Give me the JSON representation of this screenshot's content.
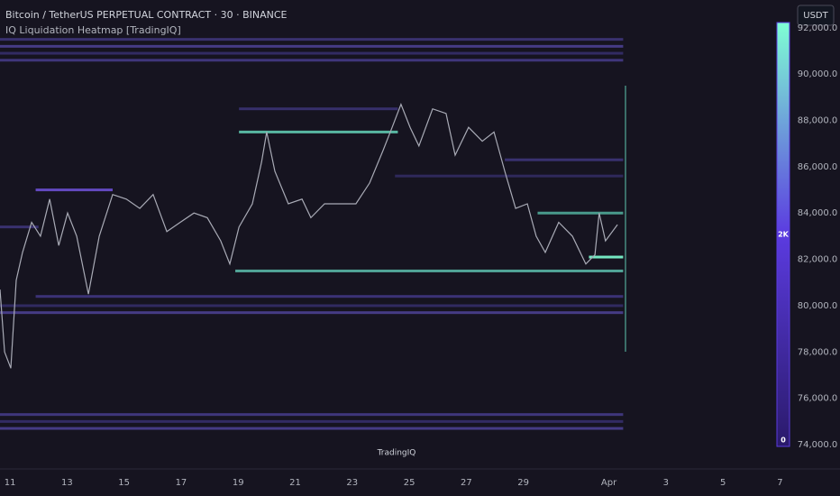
{
  "chart_data": {
    "type": "line",
    "title": "Bitcoin / TetherUS PERPETUAL CONTRACT · 30 · BINANCE",
    "subtitle": "IQ Liquidation Heatmap [TradingIQ]",
    "watermark": "TradingIQ",
    "currency_button": "USDT",
    "xlim": [
      10.65,
      38.46
    ],
    "ylim": [
      72950,
      93200
    ],
    "xticks": [
      11,
      13,
      15,
      17,
      19,
      21,
      23,
      25,
      27,
      29,
      {
        "value": 32,
        "label": "Apr"
      },
      {
        "value": 34,
        "label": "3"
      },
      {
        "value": 36,
        "label": "5"
      },
      {
        "value": 38,
        "label": "7"
      }
    ],
    "yticks": [
      {
        "value": 74000,
        "label": "74,000.0"
      },
      {
        "value": 76000,
        "label": "76,000.0"
      },
      {
        "value": 78000,
        "label": "78,000.0"
      },
      {
        "value": 80000,
        "label": "80,000.0"
      },
      {
        "value": 82000,
        "label": "82,000.0"
      },
      {
        "value": 84000,
        "label": "84,000.0"
      },
      {
        "value": 86000,
        "label": "86,000.0"
      },
      {
        "value": 88000,
        "label": "88,000.0"
      },
      {
        "value": 90000,
        "label": "90,000.0"
      },
      {
        "value": 92000,
        "label": "92,000.0"
      }
    ],
    "series": [
      {
        "name": "BTCUSDT.P",
        "color": "#a9abb6",
        "x": [
          10.65,
          10.81,
          11.03,
          11.22,
          11.44,
          11.76,
          12.07,
          12.39,
          12.71,
          13.02,
          13.34,
          13.75,
          14.13,
          14.6,
          15.08,
          15.55,
          16.02,
          16.5,
          16.97,
          17.45,
          17.92,
          18.39,
          18.71,
          19.03,
          19.5,
          19.82,
          20.0,
          20.29,
          20.76,
          21.24,
          21.55,
          22.03,
          22.66,
          23.13,
          23.61,
          24.08,
          24.4,
          24.71,
          25.03,
          25.34,
          25.82,
          26.29,
          26.61,
          27.08,
          27.56,
          27.97,
          28.35,
          28.73,
          29.14,
          29.45,
          29.77,
          30.24,
          30.72,
          31.19,
          31.51,
          31.66,
          31.88,
          32.3
        ],
        "values": [
          80700,
          78000,
          77300,
          81100,
          82300,
          83600,
          83000,
          84600,
          82600,
          84000,
          83000,
          80500,
          83000,
          84800,
          84600,
          84200,
          84800,
          83200,
          83600,
          84000,
          83800,
          82800,
          81800,
          83400,
          84400,
          86200,
          87500,
          85800,
          84400,
          84600,
          83800,
          84400,
          84400,
          84400,
          85300,
          86700,
          87700,
          88700,
          87700,
          86900,
          88500,
          88300,
          86500,
          87700,
          87100,
          87500,
          85800,
          84200,
          84400,
          83000,
          82300,
          83600,
          83000,
          81800,
          82200,
          84000,
          82800,
          83500
        ]
      }
    ],
    "levels": [
      {
        "price": 91500,
        "start": 10.65,
        "end": 32.5,
        "color": "#3d3478"
      },
      {
        "price": 91200,
        "start": 10.65,
        "end": 32.5,
        "color": "#4a3f90"
      },
      {
        "price": 90900,
        "start": 10.65,
        "end": 32.5,
        "color": "#352d6a"
      },
      {
        "price": 90600,
        "start": 10.65,
        "end": 32.5,
        "color": "#443a85"
      },
      {
        "price": 88500,
        "start": 19.03,
        "end": 24.6,
        "color": "#3a3272"
      },
      {
        "price": 87500,
        "start": 19.03,
        "end": 24.6,
        "color": "#5fc9b0"
      },
      {
        "price": 86300,
        "start": 28.35,
        "end": 32.5,
        "color": "#3d3478"
      },
      {
        "price": 85600,
        "start": 24.5,
        "end": 32.5,
        "color": "#322b62"
      },
      {
        "price": 85000,
        "start": 11.9,
        "end": 14.6,
        "color": "#6a4fd0"
      },
      {
        "price": 83400,
        "start": 10.65,
        "end": 12.0,
        "color": "#3d3478"
      },
      {
        "price": 84000,
        "start": 29.5,
        "end": 32.5,
        "color": "#4fa898"
      },
      {
        "price": 82100,
        "start": 31.3,
        "end": 32.5,
        "color": "#7fffd4"
      },
      {
        "price": 81500,
        "start": 18.9,
        "end": 32.5,
        "color": "#59b5a5"
      },
      {
        "price": 80400,
        "start": 11.9,
        "end": 32.5,
        "color": "#3f3580"
      },
      {
        "price": 80000,
        "start": 10.65,
        "end": 32.5,
        "color": "#342c68"
      },
      {
        "price": 79700,
        "start": 10.65,
        "end": 32.5,
        "color": "#4a3f90"
      },
      {
        "price": 75300,
        "start": 10.65,
        "end": 32.5,
        "color": "#443a85"
      },
      {
        "price": 75000,
        "start": 10.65,
        "end": 32.5,
        "color": "#352d6a"
      },
      {
        "price": 74700,
        "start": 10.65,
        "end": 32.5,
        "color": "#4a3f90"
      }
    ],
    "colorbar": {
      "clim": [
        0,
        4000
      ],
      "colors": [
        "#2a1a6a",
        "#5b3be0",
        "#7fffd4"
      ],
      "ticks": [
        {
          "value": 0,
          "label": "0"
        },
        {
          "value": 2000,
          "label": "2K"
        }
      ]
    }
  }
}
